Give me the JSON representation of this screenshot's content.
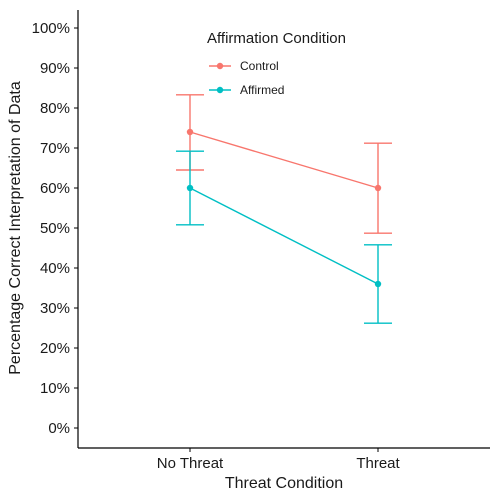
{
  "chart_data": {
    "type": "line",
    "categories": [
      "No Threat",
      "Threat"
    ],
    "xlabel": "Threat Condition",
    "ylabel": "Percentage Correct Interpretation of Data",
    "ylim": [
      0,
      100
    ],
    "yticks": [
      "0%",
      "10%",
      "20%",
      "30%",
      "40%",
      "50%",
      "60%",
      "70%",
      "80%",
      "90%",
      "100%"
    ],
    "legend": {
      "title": "Affirmation Condition",
      "position": "top-center"
    },
    "series": [
      {
        "name": "Control",
        "color": "#F8766D",
        "values": [
          74,
          60
        ],
        "error_low": [
          64.5,
          48.7
        ],
        "error_high": [
          83.3,
          71.2
        ]
      },
      {
        "name": "Affirmed",
        "color": "#00BFC4",
        "values": [
          60,
          36
        ],
        "error_low": [
          50.8,
          26.2
        ],
        "error_high": [
          69.2,
          45.8
        ]
      }
    ]
  }
}
